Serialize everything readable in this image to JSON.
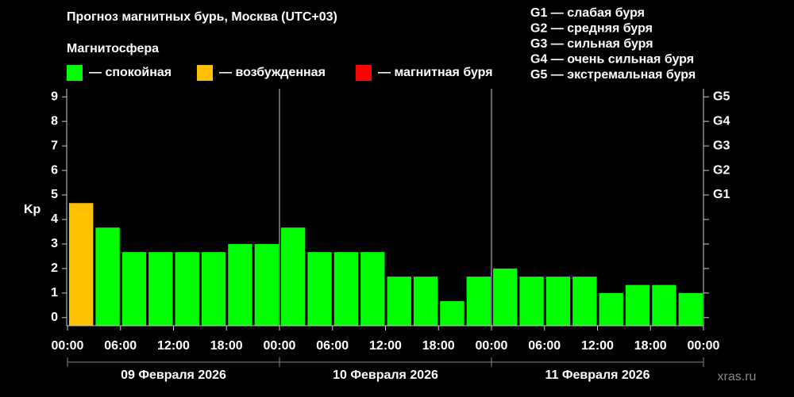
{
  "chart_data": {
    "type": "bar",
    "title": "Прогноз магнитных бурь, Москва (UTC+03)",
    "legend_title": "Магнитосфера",
    "legend": [
      {
        "color": "#00ff00",
        "label": "— спокойная"
      },
      {
        "color": "#ffc000",
        "label": "— возбужденная"
      },
      {
        "color": "#ff0000",
        "label": "— магнитная буря"
      }
    ],
    "scale_legend": [
      "G1 — слабая буря",
      "G2 — средняя буря",
      "G3 — сильная буря",
      "G4 — очень сильная буря",
      "G5 — экстремальная буря"
    ],
    "ylabel": "Kp",
    "x": [
      0,
      3,
      6,
      9,
      12,
      15,
      18,
      21,
      24,
      27,
      30,
      33,
      36,
      39,
      42,
      45,
      48,
      51,
      54,
      57,
      60,
      63,
      66,
      69
    ],
    "values": [
      4.67,
      3.67,
      2.67,
      2.67,
      2.67,
      2.67,
      3.0,
      3.0,
      3.67,
      2.67,
      2.67,
      2.67,
      1.67,
      1.67,
      0.67,
      1.67,
      2.0,
      1.67,
      1.67,
      1.67,
      1.0,
      1.33,
      1.33,
      1.0
    ],
    "colors": [
      "#ffc000",
      "#00ff00",
      "#00ff00",
      "#00ff00",
      "#00ff00",
      "#00ff00",
      "#00ff00",
      "#00ff00",
      "#00ff00",
      "#00ff00",
      "#00ff00",
      "#00ff00",
      "#00ff00",
      "#00ff00",
      "#00ff00",
      "#00ff00",
      "#00ff00",
      "#00ff00",
      "#00ff00",
      "#00ff00",
      "#00ff00",
      "#00ff00",
      "#00ff00",
      "#00ff00"
    ],
    "xlim": [
      0,
      72
    ],
    "xticks": [
      {
        "value": 0,
        "label": "00:00"
      },
      {
        "value": 6,
        "label": "06:00"
      },
      {
        "value": 12,
        "label": "12:00"
      },
      {
        "value": 18,
        "label": "18:00"
      },
      {
        "value": 24,
        "label": "00:00"
      },
      {
        "value": 30,
        "label": "06:00"
      },
      {
        "value": 36,
        "label": "12:00"
      },
      {
        "value": 42,
        "label": "18:00"
      },
      {
        "value": 48,
        "label": "00:00"
      },
      {
        "value": 54,
        "label": "06:00"
      },
      {
        "value": 60,
        "label": "12:00"
      },
      {
        "value": 66,
        "label": "18:00"
      },
      {
        "value": 72,
        "label": "00:00"
      }
    ],
    "days": [
      {
        "label": "09 Февраля 2026",
        "start": 0,
        "end": 24
      },
      {
        "label": "10 Февраля 2026",
        "start": 24,
        "end": 48
      },
      {
        "label": "11 Февраля 2026",
        "start": 48,
        "end": 72
      }
    ],
    "ylim": [
      -0.33,
      9.33
    ],
    "yticks": [
      0,
      1,
      2,
      3,
      4,
      5,
      6,
      7,
      8,
      9
    ],
    "y2lim": [
      -0.33,
      9.33
    ],
    "y2ticks": [
      {
        "value": 5,
        "label": "G1"
      },
      {
        "value": 6,
        "label": "G2"
      },
      {
        "value": 7,
        "label": "G3"
      },
      {
        "value": 8,
        "label": "G4"
      },
      {
        "value": 9,
        "label": "G5"
      }
    ],
    "watermark": "xras.ru"
  }
}
